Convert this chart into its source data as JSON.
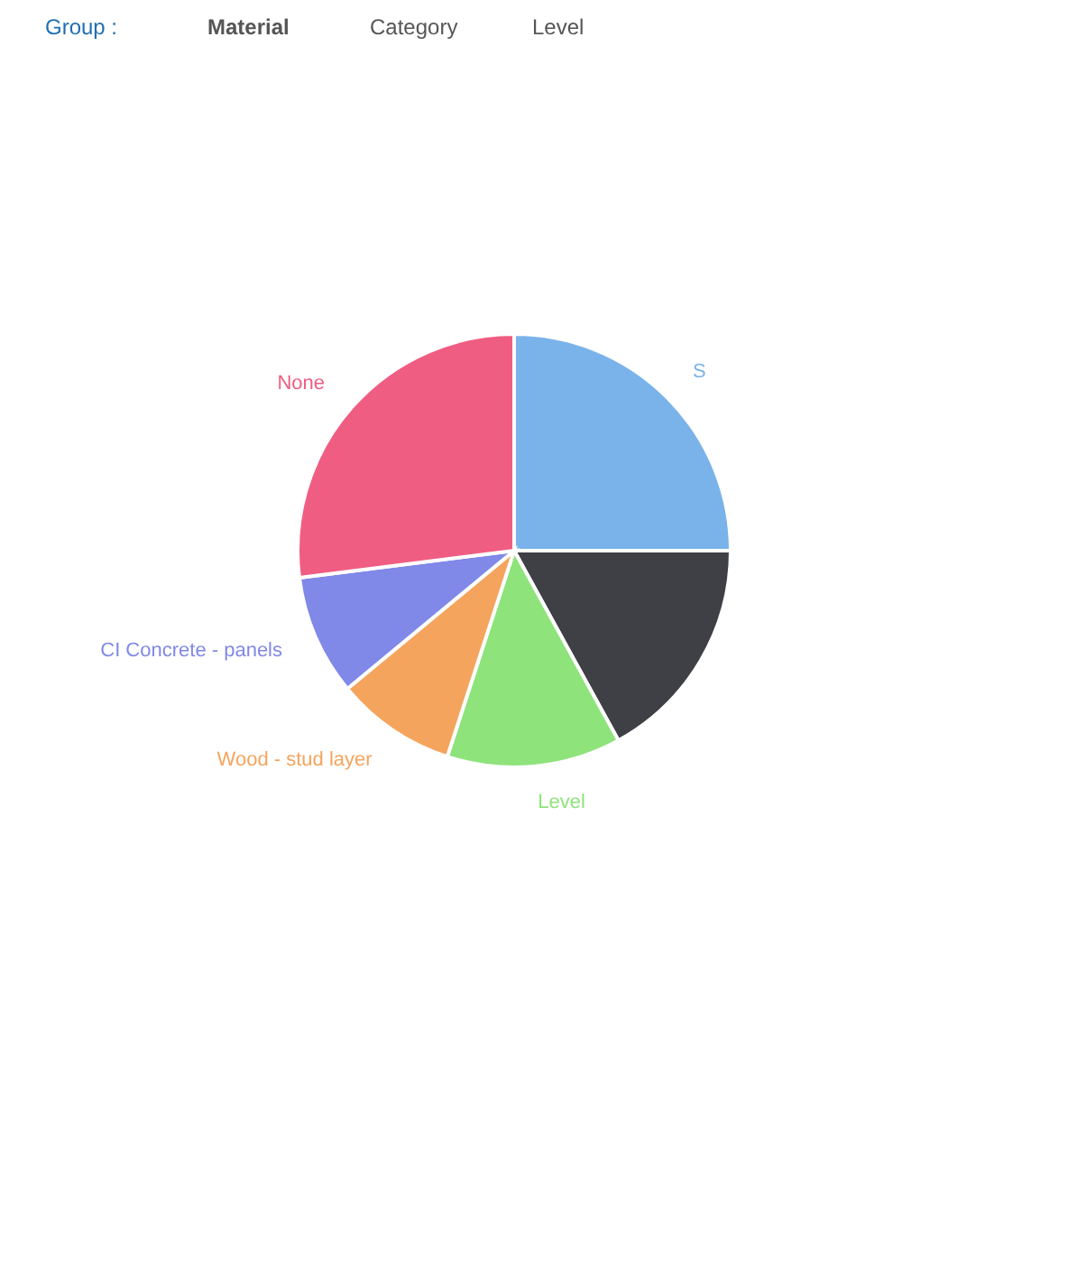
{
  "chart_data": {
    "type": "pie",
    "categories": [
      "S",
      null,
      "Level",
      "Wood - stud layer",
      "CI Concrete - panels",
      "None"
    ],
    "values": [
      25,
      17,
      13,
      9,
      9,
      27
    ],
    "colors": [
      "#7ab3ea",
      "#3f3f46",
      "#8ee37a",
      "#f5a45d",
      "#8088e8",
      "#f05d82"
    ],
    "annotations": [
      "Group :",
      "Material",
      "Category",
      "Level"
    ]
  }
}
